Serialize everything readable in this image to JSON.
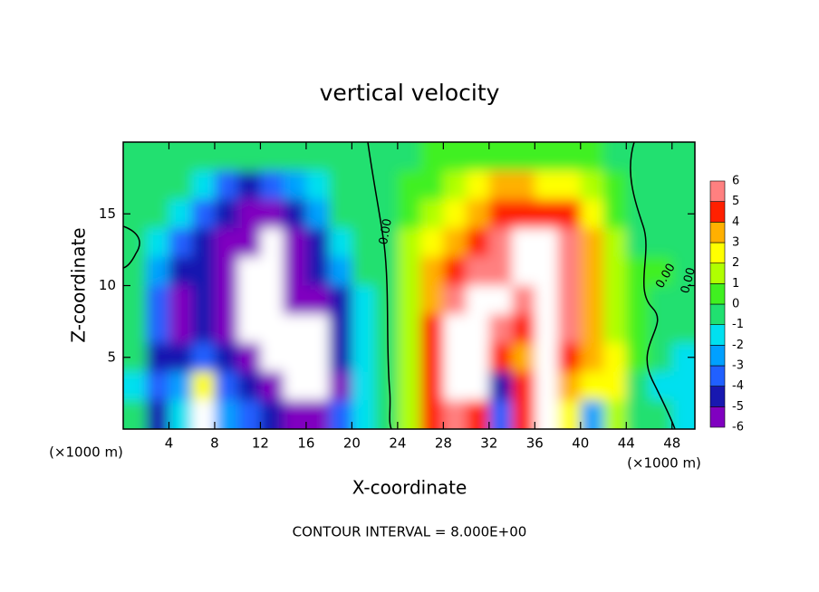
{
  "chart_data": {
    "type": "contour",
    "title": "vertical velocity",
    "x_label": "X-coordinate",
    "y_label": "Z-coordinate",
    "x_unit": "(×1000 m)",
    "footnote": "CONTOUR INTERVAL = 8.000E+00",
    "contour_labels": [
      "0.00",
      "0.00",
      "0.00"
    ],
    "xlim": [
      0,
      50
    ],
    "ylim": [
      0,
      20
    ],
    "xticks": [
      4,
      8,
      12,
      16,
      20,
      24,
      28,
      32,
      36,
      40,
      44,
      48
    ],
    "yticks": [
      5,
      10,
      15
    ],
    "levels": [
      -6,
      -5,
      -4,
      -3,
      -2,
      -1,
      0,
      1,
      2,
      3,
      4,
      5,
      6
    ],
    "colors": [
      "#8000c0",
      "#1818b0",
      "#2060ff",
      "#00a0ff",
      "#00e0f0",
      "#20e070",
      "#40f020",
      "#b0ff00",
      "#ffff00",
      "#ffb000",
      "#ff2000",
      "#ff8080"
    ],
    "beyond_color": "#ffffff",
    "x": [
      1,
      3,
      5,
      7,
      9,
      11,
      13,
      15,
      17,
      19,
      21,
      23,
      25,
      27,
      29,
      31,
      33,
      35,
      37,
      39,
      41,
      43,
      45,
      47,
      49
    ],
    "z": [
      19,
      17,
      15,
      13,
      11,
      9,
      7,
      5,
      3,
      1
    ],
    "values": [
      [
        0,
        0,
        0,
        0,
        -0.5,
        -0.5,
        -0.5,
        0,
        0,
        0,
        0,
        0,
        0,
        0.5,
        0.5,
        0.8,
        1,
        1,
        1,
        0.8,
        0.5,
        0,
        0,
        0,
        0
      ],
      [
        0,
        0,
        0,
        -1,
        -3,
        -4,
        -3,
        -2,
        -1,
        0,
        0,
        0,
        0.5,
        1,
        2,
        3,
        3.5,
        3.5,
        3,
        2.5,
        1.5,
        0.5,
        0,
        0,
        0
      ],
      [
        0,
        0,
        -1,
        -3,
        -4.5,
        -5,
        -5,
        -4,
        -2,
        -0.5,
        0,
        0,
        1,
        2,
        3,
        4,
        4.5,
        5,
        5,
        4.5,
        3,
        1,
        0,
        0,
        0
      ],
      [
        0,
        -1,
        -3,
        -4.5,
        -5.5,
        -6,
        -7,
        -5,
        -4,
        -1,
        0,
        0,
        1.5,
        3,
        4,
        5,
        5.5,
        7,
        7,
        5.5,
        4,
        1.5,
        0,
        0,
        0
      ],
      [
        0,
        -2,
        -4,
        -4.5,
        -6,
        -7,
        -7,
        -5,
        -4,
        -2,
        0,
        0,
        2,
        4,
        5,
        6,
        6,
        7,
        7,
        6,
        4,
        1.5,
        0.5,
        0.5,
        0
      ],
      [
        0,
        -3,
        -5,
        -4,
        -6,
        -7,
        -7,
        -6,
        -6,
        -4,
        -1,
        0,
        2,
        4,
        6,
        7,
        7,
        6,
        7,
        6,
        4,
        2,
        0.5,
        0,
        0
      ],
      [
        0,
        -3,
        -5,
        -4,
        -5,
        -7,
        -7,
        -7,
        -7,
        -4,
        -1,
        0,
        2,
        5,
        7,
        7,
        6,
        5,
        7,
        6,
        4,
        2,
        1,
        0,
        0
      ],
      [
        0,
        -4,
        -4,
        -3,
        -4,
        -5,
        -7,
        -7,
        -7,
        -4,
        -1,
        0,
        2,
        5,
        7,
        7,
        5,
        4,
        7,
        5,
        4,
        3,
        1,
        0,
        -1
      ],
      [
        -1,
        -3,
        -2,
        3,
        -3,
        -4,
        -5,
        -7,
        -7,
        -5,
        -1,
        0,
        2,
        5,
        7,
        7,
        -4,
        5,
        7,
        4,
        3,
        3,
        0,
        -1,
        -1
      ],
      [
        0,
        -4,
        -1,
        7,
        -2,
        -3,
        -4,
        -5,
        -5,
        -3,
        -1,
        0,
        2,
        5,
        6,
        5,
        -3,
        5,
        7,
        3,
        -2,
        2,
        0,
        0,
        -1
      ]
    ]
  }
}
